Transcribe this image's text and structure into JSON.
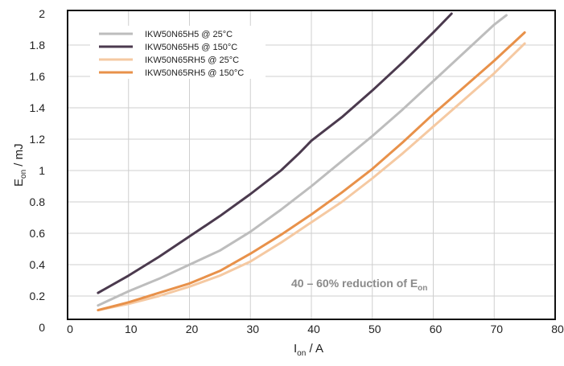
{
  "chart_data": {
    "type": "line",
    "title": "",
    "xlabel": {
      "main": "I",
      "sub": "on",
      "rest": " / A"
    },
    "ylabel": {
      "main": "E",
      "sub": "on",
      "rest": " / mJ"
    },
    "xlim": [
      0,
      80
    ],
    "ylim": [
      0,
      2
    ],
    "xticks": [
      "0",
      "10",
      "20",
      "30",
      "40",
      "50",
      "60",
      "70",
      "80"
    ],
    "yticks": [
      "0",
      "0.2",
      "0.4",
      "0.6",
      "0.8",
      "1",
      "1.2",
      "1.4",
      "1.6",
      "1.8",
      "2"
    ],
    "grid": true,
    "legend_position": "top-left",
    "annotation": {
      "main": "40 – 60% reduction of E",
      "sub": "on"
    },
    "series": [
      {
        "name": "IKW50N65H5 @ 25°C",
        "color": "#bdbdbd",
        "x": [
          5,
          10,
          15,
          20,
          25,
          30,
          35,
          40,
          45,
          50,
          55,
          60,
          65,
          70,
          72
        ],
        "y": [
          0.14,
          0.23,
          0.31,
          0.4,
          0.49,
          0.61,
          0.75,
          0.9,
          1.06,
          1.22,
          1.39,
          1.57,
          1.75,
          1.93,
          1.99
        ]
      },
      {
        "name": "IKW50N65H5 @ 150°C",
        "color": "#4b3a4e",
        "x": [
          5,
          10,
          15,
          20,
          25,
          30,
          35,
          38,
          40,
          45,
          50,
          55,
          60,
          63
        ],
        "y": [
          0.22,
          0.33,
          0.45,
          0.58,
          0.71,
          0.85,
          1.0,
          1.11,
          1.19,
          1.34,
          1.51,
          1.69,
          1.88,
          2.0
        ]
      },
      {
        "name": "IKW50N65RH5 @ 25°C",
        "color": "#f5c9a2",
        "x": [
          5,
          10,
          15,
          20,
          25,
          30,
          35,
          40,
          45,
          50,
          55,
          60,
          65,
          70,
          75
        ],
        "y": [
          0.11,
          0.15,
          0.2,
          0.26,
          0.33,
          0.42,
          0.54,
          0.67,
          0.8,
          0.95,
          1.11,
          1.28,
          1.45,
          1.62,
          1.81
        ]
      },
      {
        "name": "IKW50N65RH5 @ 150°C",
        "color": "#e8914a",
        "x": [
          5,
          10,
          15,
          20,
          25,
          30,
          35,
          40,
          45,
          50,
          55,
          60,
          65,
          70,
          75
        ],
        "y": [
          0.11,
          0.16,
          0.22,
          0.28,
          0.36,
          0.47,
          0.59,
          0.72,
          0.86,
          1.01,
          1.18,
          1.36,
          1.53,
          1.7,
          1.88
        ]
      }
    ]
  }
}
